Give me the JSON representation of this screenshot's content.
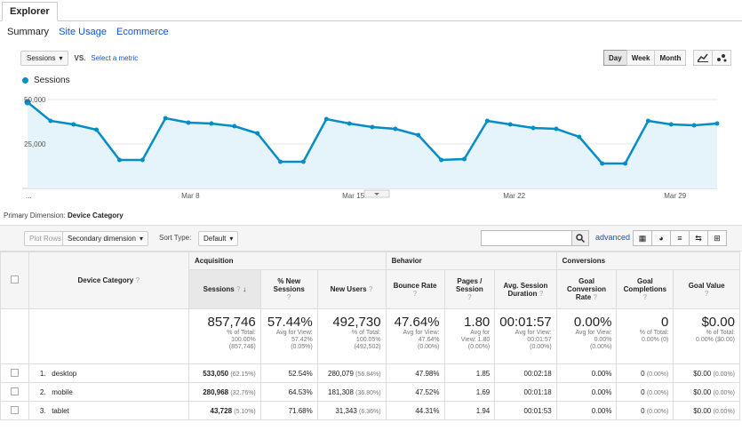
{
  "tabs": {
    "explorer": "Explorer"
  },
  "subtabs": {
    "summary": "Summary",
    "site_usage": "Site Usage",
    "ecommerce": "Ecommerce"
  },
  "metric": {
    "selected": "Sessions",
    "vs": "VS.",
    "select_metric": "Select a metric"
  },
  "period": {
    "day": "Day",
    "week": "Week",
    "month": "Month"
  },
  "chart_icons": {
    "line": "line-chart-icon",
    "motion": "motion-chart-icon"
  },
  "legend": {
    "series": "Sessions"
  },
  "chart_data": {
    "type": "area",
    "series": [
      {
        "name": "Sessions",
        "values": [
          48500,
          38000,
          36000,
          33000,
          16000,
          16000,
          39500,
          37000,
          36500,
          35000,
          31000,
          15000,
          15000,
          39000,
          36500,
          34500,
          33500,
          30000,
          16000,
          16500,
          38000,
          36000,
          34000,
          33500,
          29000,
          14000,
          14000,
          38000,
          36000,
          35500,
          36500
        ]
      }
    ],
    "x_ticks": [
      "...",
      "Mar 8",
      "Mar 15",
      "Mar 22",
      "Mar 29"
    ],
    "y_ticks": [
      "50,000",
      "25,000"
    ],
    "ylim": [
      0,
      50000
    ],
    "color": "#058dc7",
    "fill": "#e5f3fa",
    "grid": true
  },
  "primary_dimension": {
    "label": "Primary Dimension:",
    "value": "Device Category"
  },
  "toolbar": {
    "plot_rows": "Plot Rows",
    "secondary_dimension": "Secondary dimension",
    "sort_type_label": "Sort Type:",
    "sort_type_value": "Default",
    "advanced": "advanced"
  },
  "table": {
    "groups": {
      "acquisition": "Acquisition",
      "behavior": "Behavior",
      "conversions": "Conversions"
    },
    "headers": {
      "device_category": "Device Category",
      "sessions": "Sessions",
      "pct_new_sessions": "% New Sessions",
      "new_users": "New Users",
      "bounce_rate": "Bounce Rate",
      "pages_session": "Pages / Session",
      "avg_session_duration": "Avg. Session Duration",
      "goal_conversion_rate": "Goal Conversion Rate",
      "goal_completions": "Goal Completions",
      "goal_value": "Goal Value"
    },
    "totals": {
      "sessions": "857,746",
      "sessions_sub1": "% of Total:",
      "sessions_sub2": "100.00%",
      "sessions_sub3": "(857,746)",
      "pct_new": "57.44%",
      "pct_new_sub1": "Avg for View:",
      "pct_new_sub2": "57.42%",
      "pct_new_sub3": "(0.05%)",
      "new_users": "492,730",
      "new_users_sub1": "% of Total:",
      "new_users_sub2": "100.05%",
      "new_users_sub3": "(492,502)",
      "bounce": "47.64%",
      "bounce_sub1": "Avg for View:",
      "bounce_sub2": "47.64%",
      "bounce_sub3": "(0.00%)",
      "pages": "1.80",
      "pages_sub1": "Avg for",
      "pages_sub2": "View: 1.80",
      "pages_sub3": "(0.00%)",
      "duration": "00:01:57",
      "duration_sub1": "Avg for View:",
      "duration_sub2": "00:01:57",
      "duration_sub3": "(0.00%)",
      "gcr": "0.00%",
      "gcr_sub1": "Avg for View:",
      "gcr_sub2": "0.00%",
      "gcr_sub3": "(0.00%)",
      "gc": "0",
      "gc_sub1": "% of Total:",
      "gc_sub2": "0.00% (0)",
      "gv": "$0.00",
      "gv_sub1": "% of Total:",
      "gv_sub2": "0.00% ($0.00)"
    },
    "rows": [
      {
        "index": "1.",
        "device": "desktop",
        "sessions": "533,050",
        "sessions_pct": "(62.15%)",
        "pct_new": "52.54%",
        "new_users": "280,079",
        "new_users_pct": "(56.84%)",
        "bounce": "47.98%",
        "pages": "1.85",
        "duration": "00:02:18",
        "gcr": "0.00%",
        "gc": "0",
        "gc_pct": "(0.00%)",
        "gv": "$0.00",
        "gv_pct": "(0.00%)"
      },
      {
        "index": "2.",
        "device": "mobile",
        "sessions": "280,968",
        "sessions_pct": "(32.76%)",
        "pct_new": "64.53%",
        "new_users": "181,308",
        "new_users_pct": "(36.80%)",
        "bounce": "47.52%",
        "pages": "1.69",
        "duration": "00:01:18",
        "gcr": "0.00%",
        "gc": "0",
        "gc_pct": "(0.00%)",
        "gv": "$0.00",
        "gv_pct": "(0.00%)"
      },
      {
        "index": "3.",
        "device": "tablet",
        "sessions": "43,728",
        "sessions_pct": "(5.10%)",
        "pct_new": "71.68%",
        "new_users": "31,343",
        "new_users_pct": "(6.36%)",
        "bounce": "44.31%",
        "pages": "1.94",
        "duration": "00:01:53",
        "gcr": "0.00%",
        "gc": "0",
        "gc_pct": "(0.00%)",
        "gv": "$0.00",
        "gv_pct": "(0.00%)"
      }
    ]
  }
}
